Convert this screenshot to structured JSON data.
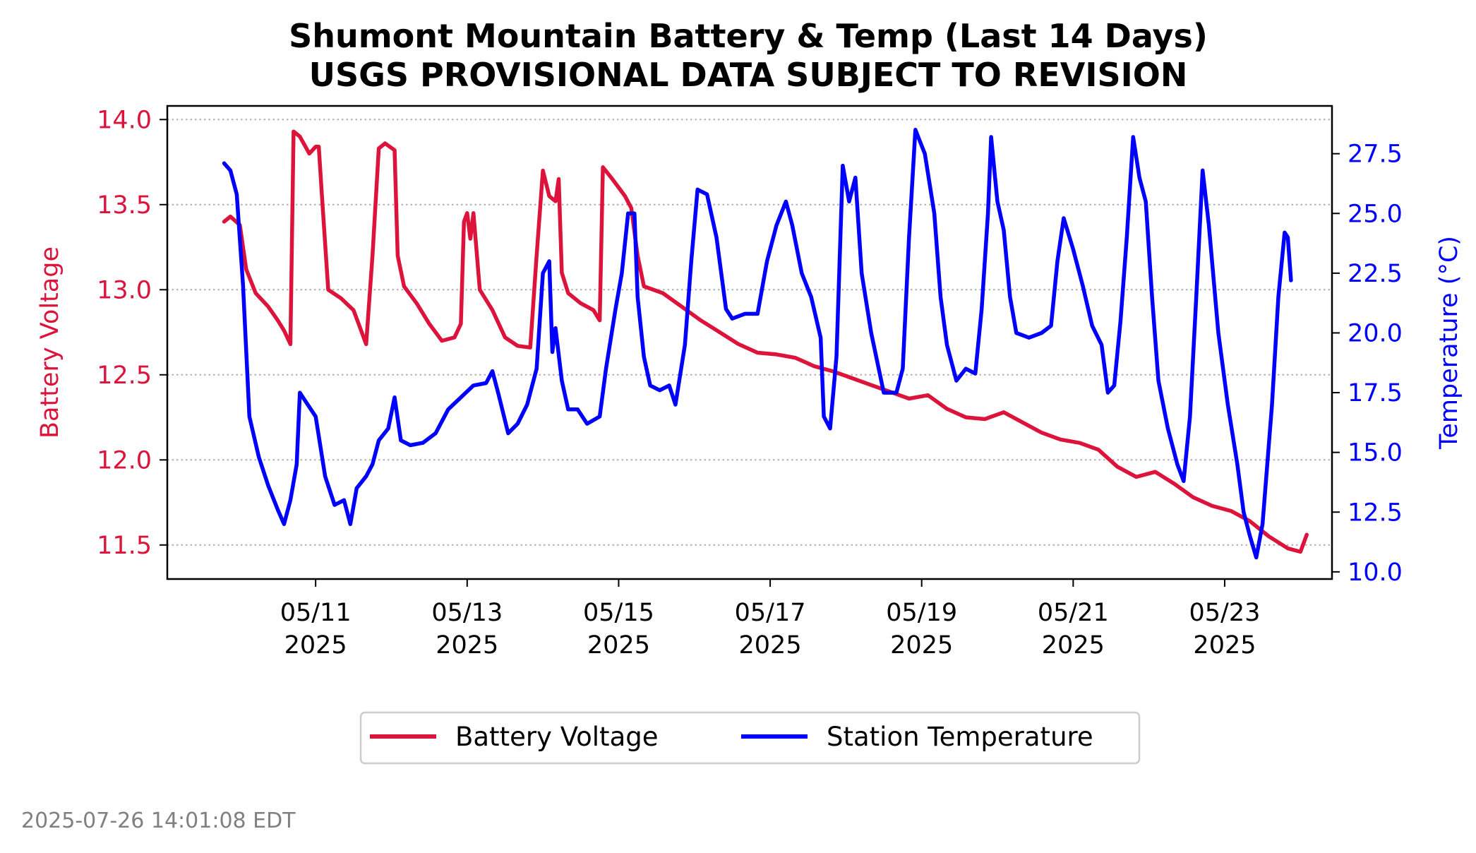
{
  "chart_data": {
    "type": "line",
    "title": "Shumont Mountain Battery & Temp (Last 14 Days)",
    "subtitle": "USGS PROVISIONAL DATA SUBJECT TO REVISION",
    "xlabel": "",
    "ylabel_left": "Battery Voltage",
    "ylabel_right": "Temperature (°C)",
    "x_ticks": [
      {
        "date": "2025-05-11",
        "line1": "05/11",
        "line2": "2025"
      },
      {
        "date": "2025-05-13",
        "line1": "05/13",
        "line2": "2025"
      },
      {
        "date": "2025-05-15",
        "line1": "05/15",
        "line2": "2025"
      },
      {
        "date": "2025-05-17",
        "line1": "05/17",
        "line2": "2025"
      },
      {
        "date": "2025-05-19",
        "line1": "05/19",
        "line2": "2025"
      },
      {
        "date": "2025-05-21",
        "line1": "05/21",
        "line2": "2025"
      },
      {
        "date": "2025-05-23",
        "line1": "05/23",
        "line2": "2025"
      }
    ],
    "xlim": [
      "2025-05-09T01:00",
      "2025-05-24T10:00"
    ],
    "y_left": {
      "lim": [
        11.3,
        14.08
      ],
      "ticks": [
        "11.5",
        "12.0",
        "12.5",
        "13.0",
        "13.5",
        "14.0"
      ],
      "color": "#dc143c"
    },
    "y_right": {
      "lim": [
        9.7,
        29.5
      ],
      "ticks": [
        "10.0",
        "12.5",
        "15.0",
        "17.5",
        "20.0",
        "22.5",
        "25.0",
        "27.5"
      ],
      "color": "#0000ff"
    },
    "grid": "horizontal dotted (left axis ticks)",
    "legend_position": "bottom-center, below plot",
    "series": [
      {
        "name": "Battery Voltage",
        "color": "#dc143c",
        "axis": "left",
        "points": [
          [
            "2025-05-09T19:00",
            13.4
          ],
          [
            "2025-05-09T21:00",
            13.43
          ],
          [
            "2025-05-10T00:00",
            13.38
          ],
          [
            "2025-05-10T02:00",
            13.12
          ],
          [
            "2025-05-10T05:00",
            12.98
          ],
          [
            "2025-05-10T09:00",
            12.9
          ],
          [
            "2025-05-10T12:00",
            12.82
          ],
          [
            "2025-05-10T14:00",
            12.76
          ],
          [
            "2025-05-10T16:00",
            12.68
          ],
          [
            "2025-05-10T17:00",
            13.93
          ],
          [
            "2025-05-10T19:00",
            13.9
          ],
          [
            "2025-05-10T22:00",
            13.8
          ],
          [
            "2025-05-11T00:00",
            13.84
          ],
          [
            "2025-05-11T01:00",
            13.84
          ],
          [
            "2025-05-11T02:00",
            13.55
          ],
          [
            "2025-05-11T04:00",
            13.0
          ],
          [
            "2025-05-11T08:00",
            12.95
          ],
          [
            "2025-05-11T12:00",
            12.88
          ],
          [
            "2025-05-11T14:00",
            12.78
          ],
          [
            "2025-05-11T16:00",
            12.68
          ],
          [
            "2025-05-11T18:00",
            13.2
          ],
          [
            "2025-05-11T20:00",
            13.83
          ],
          [
            "2025-05-11T22:00",
            13.86
          ],
          [
            "2025-05-12T01:00",
            13.82
          ],
          [
            "2025-05-12T02:00",
            13.2
          ],
          [
            "2025-05-12T04:00",
            13.02
          ],
          [
            "2025-05-12T08:00",
            12.92
          ],
          [
            "2025-05-12T12:00",
            12.8
          ],
          [
            "2025-05-12T16:00",
            12.7
          ],
          [
            "2025-05-12T20:00",
            12.72
          ],
          [
            "2025-05-12T22:00",
            12.8
          ],
          [
            "2025-05-12T23:00",
            13.4
          ],
          [
            "2025-05-13T00:00",
            13.45
          ],
          [
            "2025-05-13T01:00",
            13.3
          ],
          [
            "2025-05-13T02:00",
            13.45
          ],
          [
            "2025-05-13T04:00",
            13.0
          ],
          [
            "2025-05-13T08:00",
            12.88
          ],
          [
            "2025-05-13T12:00",
            12.72
          ],
          [
            "2025-05-13T16:00",
            12.67
          ],
          [
            "2025-05-13T20:00",
            12.66
          ],
          [
            "2025-05-13T22:00",
            13.2
          ],
          [
            "2025-05-14T00:00",
            13.7
          ],
          [
            "2025-05-14T02:00",
            13.55
          ],
          [
            "2025-05-14T04:00",
            13.52
          ],
          [
            "2025-05-14T05:00",
            13.65
          ],
          [
            "2025-05-14T06:00",
            13.1
          ],
          [
            "2025-05-14T08:00",
            12.98
          ],
          [
            "2025-05-14T12:00",
            12.92
          ],
          [
            "2025-05-14T16:00",
            12.88
          ],
          [
            "2025-05-14T18:00",
            12.82
          ],
          [
            "2025-05-14T19:00",
            13.72
          ],
          [
            "2025-05-14T22:00",
            13.65
          ],
          [
            "2025-05-15T02:00",
            13.55
          ],
          [
            "2025-05-15T04:00",
            13.48
          ],
          [
            "2025-05-15T06:00",
            13.2
          ],
          [
            "2025-05-15T08:00",
            13.02
          ],
          [
            "2025-05-15T14:00",
            12.98
          ],
          [
            "2025-05-15T20:00",
            12.9
          ],
          [
            "2025-05-16T02:00",
            12.82
          ],
          [
            "2025-05-16T08:00",
            12.75
          ],
          [
            "2025-05-16T14:00",
            12.68
          ],
          [
            "2025-05-16T20:00",
            12.63
          ],
          [
            "2025-05-17T02:00",
            12.62
          ],
          [
            "2025-05-17T08:00",
            12.6
          ],
          [
            "2025-05-17T14:00",
            12.55
          ],
          [
            "2025-05-17T20:00",
            12.52
          ],
          [
            "2025-05-18T02:00",
            12.48
          ],
          [
            "2025-05-18T08:00",
            12.44
          ],
          [
            "2025-05-18T14:00",
            12.4
          ],
          [
            "2025-05-18T20:00",
            12.36
          ],
          [
            "2025-05-19T02:00",
            12.38
          ],
          [
            "2025-05-19T08:00",
            12.3
          ],
          [
            "2025-05-19T14:00",
            12.25
          ],
          [
            "2025-05-19T20:00",
            12.24
          ],
          [
            "2025-05-20T02:00",
            12.28
          ],
          [
            "2025-05-20T08:00",
            12.22
          ],
          [
            "2025-05-20T14:00",
            12.16
          ],
          [
            "2025-05-20T20:00",
            12.12
          ],
          [
            "2025-05-21T02:00",
            12.1
          ],
          [
            "2025-05-21T08:00",
            12.06
          ],
          [
            "2025-05-21T14:00",
            11.96
          ],
          [
            "2025-05-21T20:00",
            11.9
          ],
          [
            "2025-05-22T02:00",
            11.93
          ],
          [
            "2025-05-22T08:00",
            11.86
          ],
          [
            "2025-05-22T14:00",
            11.78
          ],
          [
            "2025-05-22T20:00",
            11.73
          ],
          [
            "2025-05-23T02:00",
            11.7
          ],
          [
            "2025-05-23T08:00",
            11.64
          ],
          [
            "2025-05-23T14:00",
            11.55
          ],
          [
            "2025-05-23T20:00",
            11.48
          ],
          [
            "2025-05-24T00:00",
            11.46
          ],
          [
            "2025-05-24T02:00",
            11.56
          ]
        ]
      },
      {
        "name": "Station Temperature",
        "color": "#0000ff",
        "axis": "right",
        "points": [
          [
            "2025-05-09T19:00",
            27.1
          ],
          [
            "2025-05-09T21:00",
            26.8
          ],
          [
            "2025-05-09T23:00",
            25.8
          ],
          [
            "2025-05-10T01:00",
            22.0
          ],
          [
            "2025-05-10T03:00",
            16.5
          ],
          [
            "2025-05-10T06:00",
            14.8
          ],
          [
            "2025-05-10T09:00",
            13.6
          ],
          [
            "2025-05-10T12:00",
            12.6
          ],
          [
            "2025-05-10T14:00",
            12.0
          ],
          [
            "2025-05-10T16:00",
            13.0
          ],
          [
            "2025-05-10T18:00",
            14.5
          ],
          [
            "2025-05-10T19:00",
            17.5
          ],
          [
            "2025-05-10T21:00",
            17.1
          ],
          [
            "2025-05-11T00:00",
            16.5
          ],
          [
            "2025-05-11T03:00",
            14.0
          ],
          [
            "2025-05-11T06:00",
            12.8
          ],
          [
            "2025-05-11T09:00",
            13.0
          ],
          [
            "2025-05-11T11:00",
            12.0
          ],
          [
            "2025-05-11T13:00",
            13.5
          ],
          [
            "2025-05-11T16:00",
            14.0
          ],
          [
            "2025-05-11T18:00",
            14.5
          ],
          [
            "2025-05-11T20:00",
            15.5
          ],
          [
            "2025-05-11T23:00",
            16.0
          ],
          [
            "2025-05-12T01:00",
            17.3
          ],
          [
            "2025-05-12T03:00",
            15.5
          ],
          [
            "2025-05-12T06:00",
            15.3
          ],
          [
            "2025-05-12T10:00",
            15.4
          ],
          [
            "2025-05-12T14:00",
            15.8
          ],
          [
            "2025-05-12T18:00",
            16.8
          ],
          [
            "2025-05-12T22:00",
            17.3
          ],
          [
            "2025-05-13T02:00",
            17.8
          ],
          [
            "2025-05-13T06:00",
            17.9
          ],
          [
            "2025-05-13T08:00",
            18.4
          ],
          [
            "2025-05-13T10:00",
            17.4
          ],
          [
            "2025-05-13T13:00",
            15.8
          ],
          [
            "2025-05-13T16:00",
            16.2
          ],
          [
            "2025-05-13T19:00",
            17.0
          ],
          [
            "2025-05-13T22:00",
            18.5
          ],
          [
            "2025-05-14T00:00",
            22.5
          ],
          [
            "2025-05-14T02:00",
            23.0
          ],
          [
            "2025-05-14T03:00",
            19.2
          ],
          [
            "2025-05-14T04:00",
            20.2
          ],
          [
            "2025-05-14T06:00",
            18.0
          ],
          [
            "2025-05-14T08:00",
            16.8
          ],
          [
            "2025-05-14T11:00",
            16.8
          ],
          [
            "2025-05-14T14:00",
            16.2
          ],
          [
            "2025-05-14T18:00",
            16.5
          ],
          [
            "2025-05-14T20:00",
            18.5
          ],
          [
            "2025-05-14T23:00",
            21.0
          ],
          [
            "2025-05-15T01:00",
            22.5
          ],
          [
            "2025-05-15T03:00",
            25.0
          ],
          [
            "2025-05-15T05:00",
            25.0
          ],
          [
            "2025-05-15T06:00",
            21.5
          ],
          [
            "2025-05-15T08:00",
            19.0
          ],
          [
            "2025-05-15T10:00",
            17.8
          ],
          [
            "2025-05-15T13:00",
            17.6
          ],
          [
            "2025-05-15T16:00",
            17.8
          ],
          [
            "2025-05-15T18:00",
            17.0
          ],
          [
            "2025-05-15T21:00",
            19.5
          ],
          [
            "2025-05-15T23:00",
            23.0
          ],
          [
            "2025-05-16T01:00",
            26.0
          ],
          [
            "2025-05-16T04:00",
            25.8
          ],
          [
            "2025-05-16T07:00",
            24.0
          ],
          [
            "2025-05-16T10:00",
            21.0
          ],
          [
            "2025-05-16T12:00",
            20.6
          ],
          [
            "2025-05-16T16:00",
            20.8
          ],
          [
            "2025-05-16T20:00",
            20.8
          ],
          [
            "2025-05-16T23:00",
            23.0
          ],
          [
            "2025-05-17T02:00",
            24.5
          ],
          [
            "2025-05-17T05:00",
            25.5
          ],
          [
            "2025-05-17T07:00",
            24.5
          ],
          [
            "2025-05-17T10:00",
            22.5
          ],
          [
            "2025-05-17T13:00",
            21.5
          ],
          [
            "2025-05-17T16:00",
            19.8
          ],
          [
            "2025-05-17T17:00",
            16.5
          ],
          [
            "2025-05-17T19:00",
            16.0
          ],
          [
            "2025-05-17T21:00",
            19.0
          ],
          [
            "2025-05-17T23:00",
            27.0
          ],
          [
            "2025-05-18T01:00",
            25.5
          ],
          [
            "2025-05-18T03:00",
            26.5
          ],
          [
            "2025-05-18T05:00",
            22.5
          ],
          [
            "2025-05-18T08:00",
            20.0
          ],
          [
            "2025-05-18T12:00",
            17.5
          ],
          [
            "2025-05-18T16:00",
            17.5
          ],
          [
            "2025-05-18T18:00",
            18.5
          ],
          [
            "2025-05-18T20:00",
            24.0
          ],
          [
            "2025-05-18T22:00",
            28.5
          ],
          [
            "2025-05-19T01:00",
            27.5
          ],
          [
            "2025-05-19T04:00",
            25.0
          ],
          [
            "2025-05-19T06:00",
            21.5
          ],
          [
            "2025-05-19T08:00",
            19.5
          ],
          [
            "2025-05-19T11:00",
            18.0
          ],
          [
            "2025-05-19T14:00",
            18.5
          ],
          [
            "2025-05-19T17:00",
            18.3
          ],
          [
            "2025-05-19T19:00",
            21.0
          ],
          [
            "2025-05-19T21:00",
            25.0
          ],
          [
            "2025-05-19T22:00",
            28.2
          ],
          [
            "2025-05-20T00:00",
            25.5
          ],
          [
            "2025-05-20T02:00",
            24.3
          ],
          [
            "2025-05-20T04:00",
            21.5
          ],
          [
            "2025-05-20T06:00",
            20.0
          ],
          [
            "2025-05-20T10:00",
            19.8
          ],
          [
            "2025-05-20T14:00",
            20.0
          ],
          [
            "2025-05-20T17:00",
            20.3
          ],
          [
            "2025-05-20T19:00",
            23.0
          ],
          [
            "2025-05-20T21:00",
            24.8
          ],
          [
            "2025-05-21T00:00",
            23.5
          ],
          [
            "2025-05-21T03:00",
            22.0
          ],
          [
            "2025-05-21T06:00",
            20.3
          ],
          [
            "2025-05-21T09:00",
            19.5
          ],
          [
            "2025-05-21T11:00",
            17.5
          ],
          [
            "2025-05-21T13:00",
            17.8
          ],
          [
            "2025-05-21T15:00",
            20.5
          ],
          [
            "2025-05-21T17:00",
            24.0
          ],
          [
            "2025-05-21T19:00",
            28.2
          ],
          [
            "2025-05-21T21:00",
            26.5
          ],
          [
            "2025-05-21T23:00",
            25.5
          ],
          [
            "2025-05-22T01:00",
            21.5
          ],
          [
            "2025-05-22T03:00",
            18.0
          ],
          [
            "2025-05-22T06:00",
            16.0
          ],
          [
            "2025-05-22T09:00",
            14.5
          ],
          [
            "2025-05-22T11:00",
            13.8
          ],
          [
            "2025-05-22T13:00",
            16.5
          ],
          [
            "2025-05-22T15:00",
            21.5
          ],
          [
            "2025-05-22T17:00",
            26.8
          ],
          [
            "2025-05-22T19:00",
            24.5
          ],
          [
            "2025-05-22T22:00",
            20.0
          ],
          [
            "2025-05-23T01:00",
            17.0
          ],
          [
            "2025-05-23T04:00",
            14.5
          ],
          [
            "2025-05-23T06:00",
            12.5
          ],
          [
            "2025-05-23T08:00",
            11.5
          ],
          [
            "2025-05-23T10:00",
            10.6
          ],
          [
            "2025-05-23T12:00",
            12.0
          ],
          [
            "2025-05-23T15:00",
            17.0
          ],
          [
            "2025-05-23T17:00",
            21.5
          ],
          [
            "2025-05-23T19:00",
            24.2
          ],
          [
            "2025-05-23T20:00",
            24.0
          ],
          [
            "2025-05-23T21:00",
            22.2
          ]
        ]
      }
    ]
  },
  "legend": {
    "battery_label": "Battery Voltage",
    "temperature_label": "Station Temperature",
    "battery_color": "#dc143c",
    "temperature_color": "#0000ff"
  },
  "timestamp": "2025-07-26 14:01:08 EDT"
}
